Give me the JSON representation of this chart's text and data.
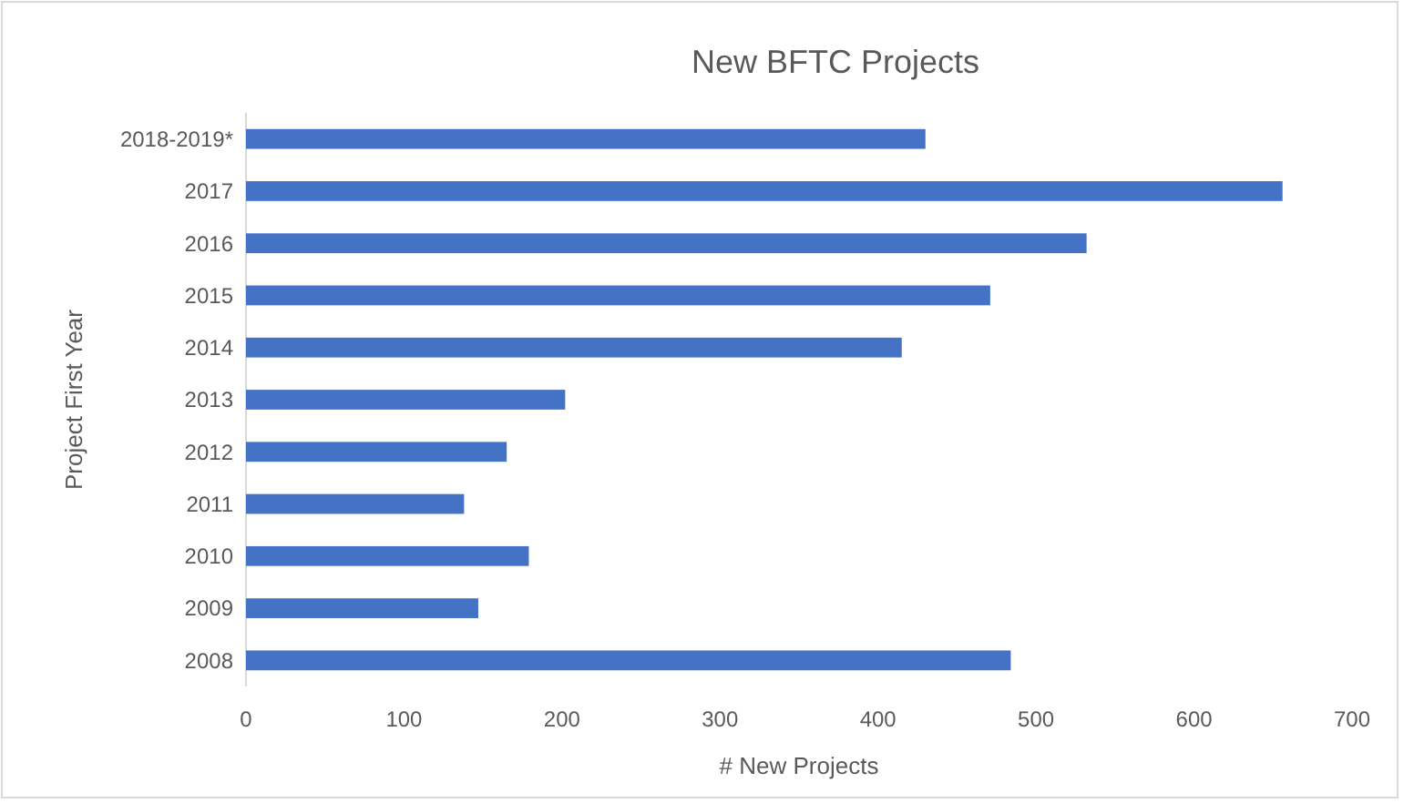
{
  "chart_data": {
    "type": "bar",
    "orientation": "horizontal",
    "title": "New BFTC Projects",
    "xlabel": "# New Projects",
    "ylabel": "Project First Year",
    "categories": [
      "2018-2019*",
      "2017",
      "2016",
      "2015",
      "2014",
      "2013",
      "2012",
      "2011",
      "2010",
      "2009",
      "2008"
    ],
    "values": [
      430,
      656,
      532,
      471,
      415,
      202,
      165,
      138,
      179,
      147,
      484
    ],
    "color": "#4472c4",
    "xlim": [
      0,
      700
    ],
    "xticks": [
      0,
      100,
      200,
      300,
      400,
      500,
      600,
      700
    ]
  }
}
